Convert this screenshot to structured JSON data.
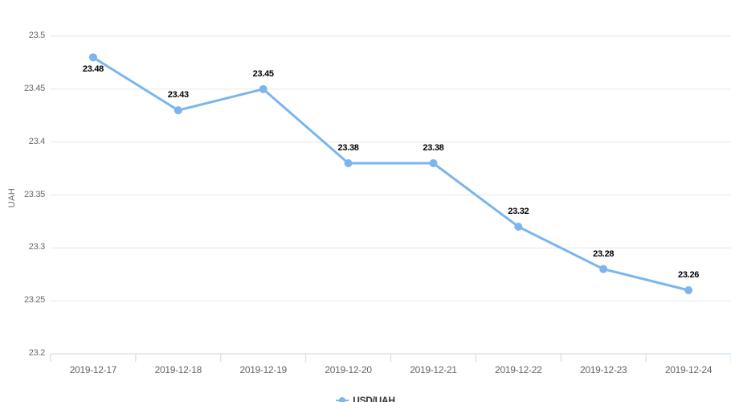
{
  "chart_data": {
    "type": "line",
    "title": "",
    "x": [
      "2019-12-17",
      "2019-12-18",
      "2019-12-19",
      "2019-12-20",
      "2019-12-21",
      "2019-12-22",
      "2019-12-23",
      "2019-12-24"
    ],
    "series": [
      {
        "name": "USD/UAH",
        "color": "#7cb5ec",
        "values": [
          23.48,
          23.43,
          23.45,
          23.38,
          23.38,
          23.32,
          23.28,
          23.26
        ]
      }
    ],
    "data_labels": [
      "23.48",
      "23.43",
      "23.45",
      "23.38",
      "23.38",
      "23.32",
      "23.28",
      "23.26"
    ],
    "data_label_placement": [
      "below",
      "above",
      "above",
      "above",
      "above",
      "above",
      "above",
      "above"
    ],
    "xlabel": "",
    "ylabel": "UAH",
    "ylim": [
      23.2,
      23.5
    ],
    "yticks": [
      {
        "value": 23.5,
        "label": "23.5"
      },
      {
        "value": 23.45,
        "label": "23.45"
      },
      {
        "value": 23.4,
        "label": "23.4"
      },
      {
        "value": 23.35,
        "label": "23.35"
      },
      {
        "value": 23.3,
        "label": "23.3"
      },
      {
        "value": 23.25,
        "label": "23.25"
      },
      {
        "value": 23.2,
        "label": "23.2"
      }
    ],
    "grid": true,
    "legend_position": "bottom-center"
  },
  "legend": {
    "label": "USD/UAH"
  },
  "colors": {
    "background": "#ffffff",
    "series": "#7cb5ec",
    "grid": "#e6e6e6",
    "axis": "#ccd6eb",
    "tick_label": "#666666",
    "data_label": "#000000",
    "legend_text": "#333333"
  }
}
